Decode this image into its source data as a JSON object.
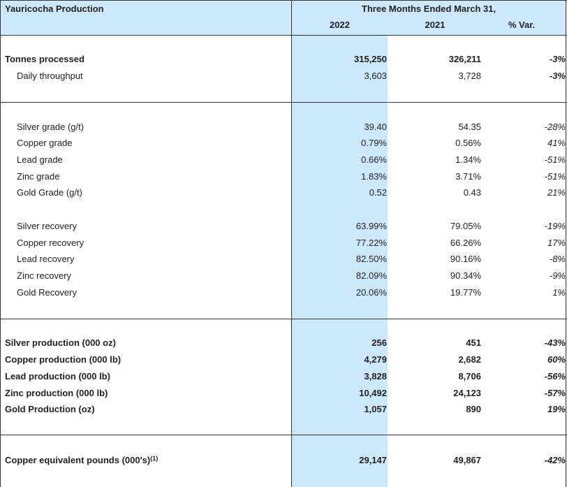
{
  "header": {
    "title": "Yauricocha Production",
    "period": "Three Months Ended March 31,",
    "col_2022": "2022",
    "col_2021": "2021",
    "col_var": "% Var."
  },
  "rows": [
    {
      "label": "Tonnes processed",
      "v2022": "315,250",
      "v2021": "326,211",
      "var": "-3%"
    },
    {
      "label": "Daily throughput",
      "v2022": "3,603",
      "v2021": "3,728",
      "var": "-3%"
    },
    {
      "label": "Silver grade (g/t)",
      "v2022": "39.40",
      "v2021": "54.35",
      "var": "-28%"
    },
    {
      "label": "Copper grade",
      "v2022": "0.79%",
      "v2021": "0.56%",
      "var": "41%"
    },
    {
      "label": "Lead grade",
      "v2022": "0.66%",
      "v2021": "1.34%",
      "var": "-51%"
    },
    {
      "label": "Zinc grade",
      "v2022": "1.83%",
      "v2021": "3.71%",
      "var": "-51%"
    },
    {
      "label": "Gold Grade (g/t)",
      "v2022": "0.52",
      "v2021": "0.43",
      "var": "21%"
    },
    {
      "label": "Silver recovery",
      "v2022": "63.99%",
      "v2021": "79.05%",
      "var": "-19%"
    },
    {
      "label": "Copper recovery",
      "v2022": "77.22%",
      "v2021": "66.26%",
      "var": "17%"
    },
    {
      "label": "Lead recovery",
      "v2022": "82.50%",
      "v2021": "90.16%",
      "var": "-8%"
    },
    {
      "label": "Zinc recovery",
      "v2022": "82.09%",
      "v2021": "90.34%",
      "var": "-9%"
    },
    {
      "label": "Gold Recovery",
      "v2022": "20.06%",
      "v2021": "19.77%",
      "var": "1%"
    },
    {
      "label": "Silver production (000 oz)",
      "v2022": "256",
      "v2021": "451",
      "var": "-43%"
    },
    {
      "label": "Copper production (000 lb)",
      "v2022": "4,279",
      "v2021": "2,682",
      "var": "60%"
    },
    {
      "label": "Lead production (000 lb)",
      "v2022": "3,828",
      "v2021": "8,706",
      "var": "-56%"
    },
    {
      "label": "Zinc production (000 lb)",
      "v2022": "10,492",
      "v2021": "24,123",
      "var": "-57%"
    },
    {
      "label": "Gold Production (oz)",
      "v2022": "1,057",
      "v2021": "890",
      "var": "19%"
    },
    {
      "label": "Copper equivalent pounds (000's)",
      "footnote": "(1)",
      "v2022": "29,147",
      "v2021": "49,867",
      "var": "-42%"
    }
  ]
}
